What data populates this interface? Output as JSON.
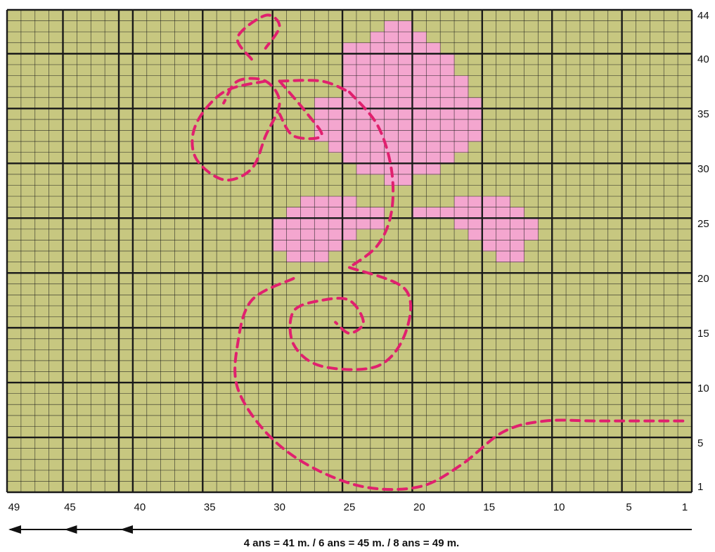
{
  "chart_data": {
    "type": "knitting-grid",
    "columns": 49,
    "rows": 44,
    "x_ticks": [
      49,
      45,
      40,
      35,
      30,
      25,
      20,
      15,
      10,
      5,
      1
    ],
    "y_ticks": [
      44,
      40,
      35,
      30,
      25,
      20,
      15,
      10,
      5,
      1
    ],
    "caption": "4 ans = 41 m. / 6 ans = 45 m. / 8 ans = 49 m.",
    "size_marks": [
      {
        "label": "4 ans",
        "stitches": 41
      },
      {
        "label": "6 ans",
        "stitches": 45
      },
      {
        "label": "8 ans",
        "stitches": 49
      }
    ],
    "colors": {
      "background": "#c7c780",
      "motif_fill": "#f4a6cf",
      "embroidery_line": "#e0206e",
      "grid_line": "#1a1a1a"
    },
    "pink_motif": {
      "flower": [
        {
          "row": 43,
          "from": 22,
          "to": 21
        },
        {
          "row": 42,
          "from": 23,
          "to": 20
        },
        {
          "row": 41,
          "from": 25,
          "to": 19
        },
        {
          "row": 40,
          "from": 25,
          "to": 18
        },
        {
          "row": 39,
          "from": 25,
          "to": 18
        },
        {
          "row": 38,
          "from": 25,
          "to": 17
        },
        {
          "row": 37,
          "from": 25,
          "to": 17
        },
        {
          "row": 36,
          "from": 27,
          "to": 16
        },
        {
          "row": 35,
          "from": 27,
          "to": 16
        },
        {
          "row": 34,
          "from": 27,
          "to": 16
        },
        {
          "row": 33,
          "from": 27,
          "to": 16
        },
        {
          "row": 32,
          "from": 26,
          "to": 17
        },
        {
          "row": 31,
          "from": 25,
          "to": 18
        },
        {
          "row": 30,
          "from": 24,
          "to": 19
        },
        {
          "row": 29,
          "from": 22,
          "to": 21
        }
      ],
      "leaf_left": [
        {
          "row": 27,
          "from": 28,
          "to": 25
        },
        {
          "row": 26,
          "from": 29,
          "to": 23
        },
        {
          "row": 25,
          "from": 30,
          "to": 23
        },
        {
          "row": 24,
          "from": 30,
          "to": 25
        },
        {
          "row": 23,
          "from": 30,
          "to": 26
        },
        {
          "row": 22,
          "from": 29,
          "to": 27
        }
      ],
      "leaf_right": [
        {
          "row": 27,
          "from": 17,
          "to": 14
        },
        {
          "row": 26,
          "from": 20,
          "to": 13
        },
        {
          "row": 25,
          "from": 17,
          "to": 12
        },
        {
          "row": 24,
          "from": 16,
          "to": 12
        },
        {
          "row": 23,
          "from": 15,
          "to": 13
        },
        {
          "row": 22,
          "from": 14,
          "to": 13
        }
      ]
    },
    "embroidery_lines": [
      {
        "name": "stem",
        "points": [
          [
            25,
            37
          ],
          [
            23,
            34
          ],
          [
            22,
            30
          ],
          [
            22,
            26
          ],
          [
            23,
            23
          ],
          [
            25,
            21
          ]
        ]
      },
      {
        "name": "big-loop",
        "points": [
          [
            25,
            21
          ],
          [
            21,
            19
          ],
          [
            21,
            15
          ],
          [
            23,
            12
          ],
          [
            27,
            12
          ],
          [
            29,
            14
          ],
          [
            29,
            17
          ],
          [
            27,
            18
          ],
          [
            25,
            18
          ],
          [
            24,
            16
          ],
          [
            25,
            15
          ],
          [
            26,
            16
          ]
        ]
      },
      {
        "name": "lower-curve",
        "points": [
          [
            29,
            20
          ],
          [
            32,
            18
          ],
          [
            33,
            14
          ],
          [
            33,
            10
          ],
          [
            31,
            6
          ],
          [
            28,
            3
          ],
          [
            24,
            1
          ],
          [
            20,
            1
          ],
          [
            17,
            3
          ],
          [
            14,
            6
          ],
          [
            11,
            7
          ],
          [
            7,
            7
          ],
          [
            1,
            7
          ]
        ]
      },
      {
        "name": "left-loop-1",
        "points": [
          [
            31,
            38
          ],
          [
            34,
            37
          ],
          [
            36,
            34
          ],
          [
            36,
            31
          ],
          [
            34,
            29
          ],
          [
            32,
            30
          ],
          [
            31,
            33
          ],
          [
            30,
            36
          ],
          [
            31,
            38
          ],
          [
            33,
            38
          ],
          [
            34,
            36
          ]
        ]
      },
      {
        "name": "left-loop-2",
        "points": [
          [
            30,
            38
          ],
          [
            27,
            38
          ],
          [
            25,
            37
          ]
        ]
      },
      {
        "name": "left-loop-3",
        "points": [
          [
            30,
            38
          ],
          [
            28,
            35
          ],
          [
            27,
            33
          ],
          [
            29,
            33
          ],
          [
            30,
            35
          ]
        ]
      },
      {
        "name": "top-spiral",
        "points": [
          [
            32,
            40
          ],
          [
            33,
            42
          ],
          [
            31,
            44
          ],
          [
            30,
            43
          ],
          [
            31,
            41
          ]
        ]
      }
    ]
  }
}
